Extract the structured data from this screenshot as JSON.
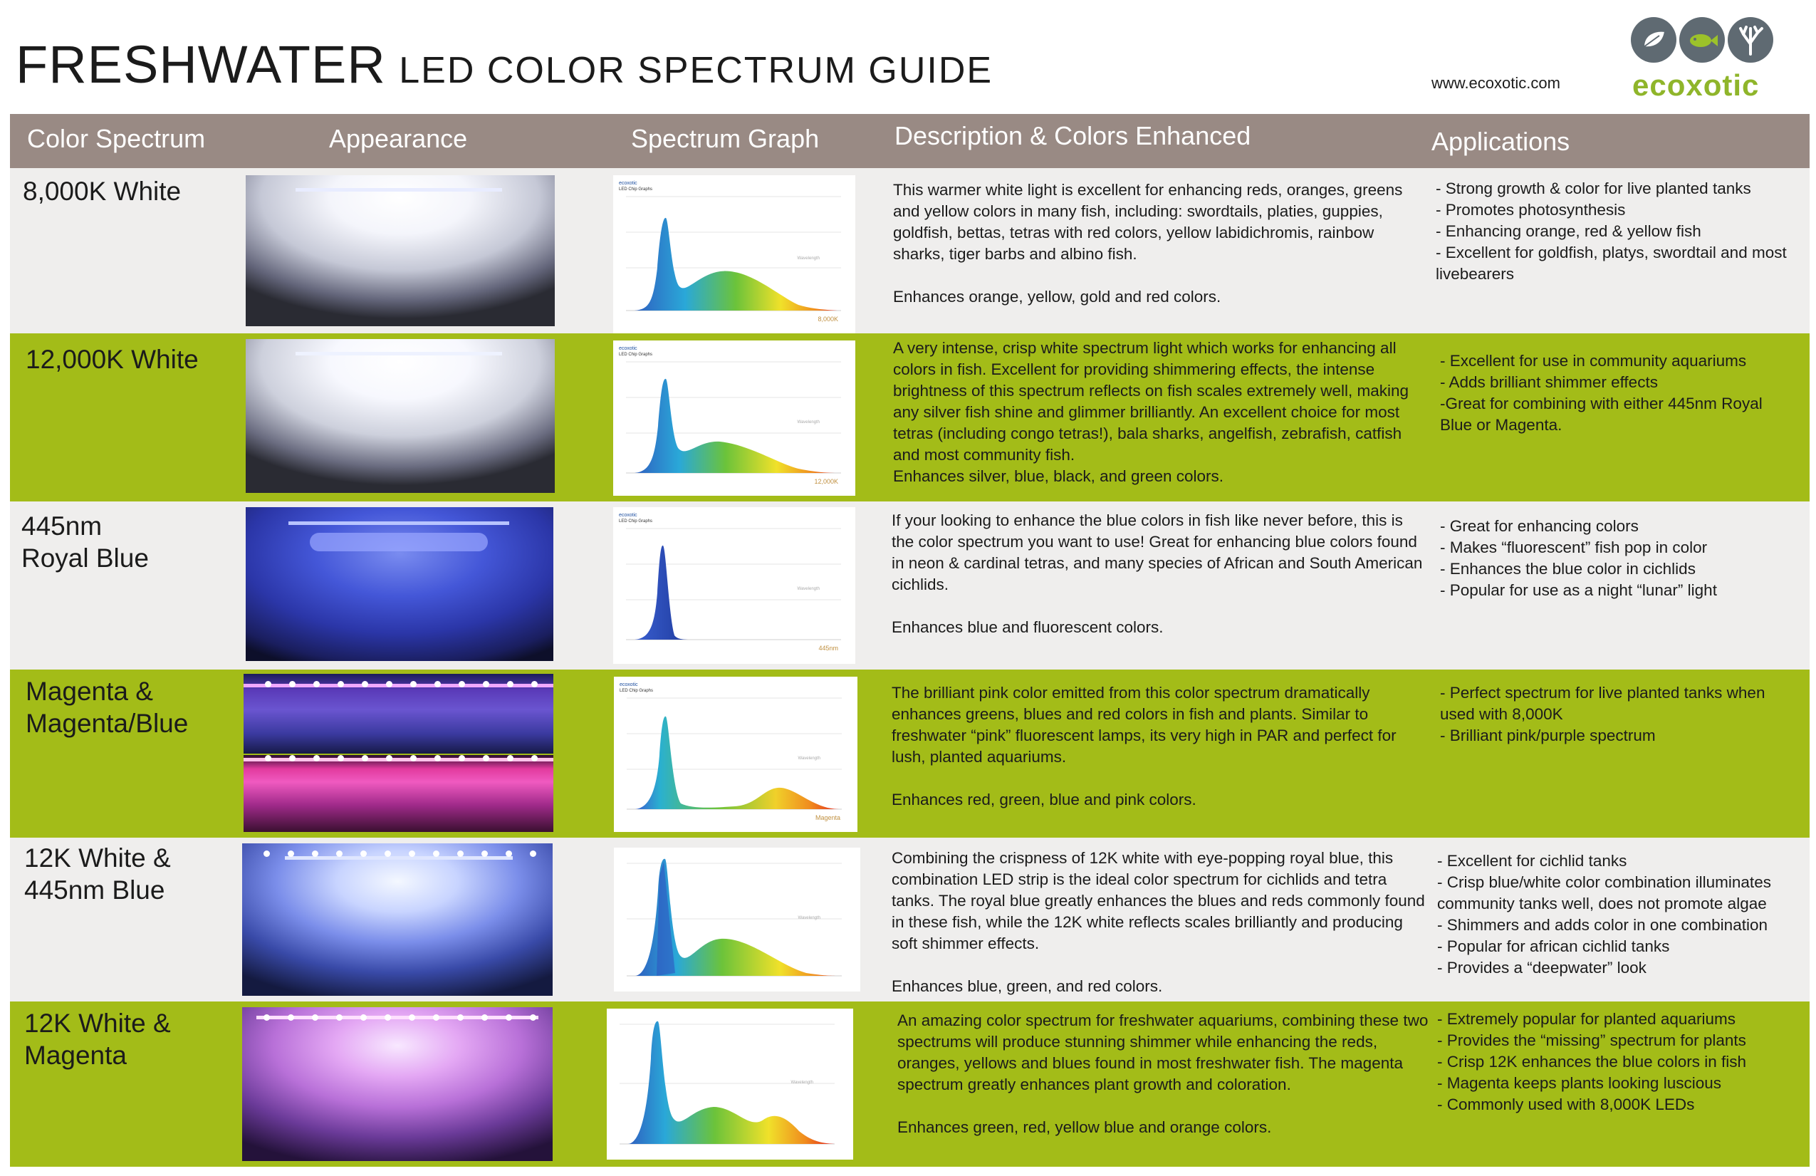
{
  "title": {
    "main": "FRESHWATER",
    "sub": "LED COLOR SPECTRUM GUIDE"
  },
  "website": "www.ecoxotic.com",
  "brand": {
    "name": "ecoxotic",
    "color": "#8fb52a",
    "icons": [
      "leaf-icon",
      "fish-icon",
      "coral-icon"
    ]
  },
  "columns": [
    "Color Spectrum",
    "Appearance",
    "Spectrum Graph",
    "Description & Colors Enhanced",
    "Applications"
  ],
  "colors": {
    "header": "#998a84",
    "row_gray": "#efeeed",
    "row_green": "#a3bc18"
  },
  "graph_labels": {
    "brand": "ecoxotic",
    "heading": "LED Chip Graphs",
    "wavelength": "Wavelength"
  },
  "rows": [
    {
      "name": "8,000K White",
      "graph_label": "8,000K",
      "description": "This warmer white light is excellent for enhancing reds, oranges, greens and yellow colors in many fish, including: swordtails, platies, guppies, goldfish, bettas, tetras with red colors, yellow labidichromis, rainbow sharks, tiger barbs and albino fish.",
      "enhances": "Enhances orange, yellow, gold and red colors.",
      "applications": [
        "- Strong growth & color for live planted tanks",
        "- Promotes photosynthesis",
        "- Enhancing orange, red & yellow fish",
        "- Excellent for goldfish, platys, swordtail and most livebearers"
      ]
    },
    {
      "name": "12,000K White",
      "graph_label": "12,000K",
      "description": "A very intense, crisp white spectrum light which works for enhancing all colors in fish.  Excellent for providing shimmering effects, the intense brightness of this spectrum reflects on fish scales extremely well, making any silver fish shine and glimmer brilliantly.  An excellent choice for most tetras (including congo tetras!), bala sharks, angelfish, zebrafish, catfish and most community fish.",
      "enhances": "Enhances silver, blue, black, and green colors.",
      "applications": [
        "- Excellent for use in community aquariums",
        "- Adds brilliant shimmer effects",
        "-Great for combining with either 445nm Royal Blue or Magenta."
      ]
    },
    {
      "name": "445nm\nRoyal Blue",
      "graph_label": "445nm",
      "description": "If your looking to enhance the blue colors in fish like never before, this is the color spectrum you want to use!  Great for enhancing blue colors found in neon & cardinal tetras,  and many species of African and South American cichlids.",
      "enhances": "Enhances blue and fluorescent colors.",
      "applications": [
        "- Great for enhancing colors",
        "- Makes “fluorescent” fish pop in color",
        "- Enhances the blue color in cichlids",
        "- Popular for use as a night “lunar” light"
      ]
    },
    {
      "name": "Magenta &\nMagenta/Blue",
      "graph_label": "Magenta",
      "description": "The brilliant pink color emitted from this color spectrum dramatically enhances greens, blues and red colors in fish and plants.  Similar to freshwater “pink” fluorescent lamps, its very high in PAR and perfect for lush, planted aquariums.",
      "enhances": "Enhances red, green, blue and pink colors.",
      "applications": [
        "- Perfect spectrum for live planted tanks when used with 8,000K",
        "- Brilliant pink/purple spectrum"
      ]
    },
    {
      "name": "12K White &\n445nm Blue",
      "graph_label": "",
      "description": "Combining the crispness of 12K white with eye-popping royal blue, this combination LED strip is the ideal color spectrum for cichlids and tetra tanks.  The royal blue greatly enhances the blues and reds commonly found in these fish, while the 12K white reflects scales brilliantly and producing soft shimmer effects.",
      "enhances": "Enhances blue, green, and red colors.",
      "applications": [
        "- Excellent for cichlid tanks",
        "- Crisp blue/white color combination illuminates community tanks well, does not promote algae",
        "- Shimmers and adds color in one combination",
        "- Popular for african cichlid tanks",
        "- Provides a “deepwater” look"
      ]
    },
    {
      "name": "12K White &\nMagenta",
      "graph_label": "",
      "description": "An amazing color spectrum for freshwater aquariums,  combining these two spectrums will produce stunning shimmer while enhancing the reds, oranges, yellows and blues found in most freshwater fish.  The magenta spectrum greatly enhances plant growth and coloration.",
      "enhances": "Enhances green, red, yellow blue and orange colors.",
      "applications": [
        "- Extremely popular for planted aquariums",
        "- Provides the “missing” spectrum for plants",
        "- Crisp 12K enhances the blue colors in fish",
        "- Magenta keeps plants looking luscious",
        "- Commonly used with 8,000K LEDs"
      ]
    }
  ]
}
